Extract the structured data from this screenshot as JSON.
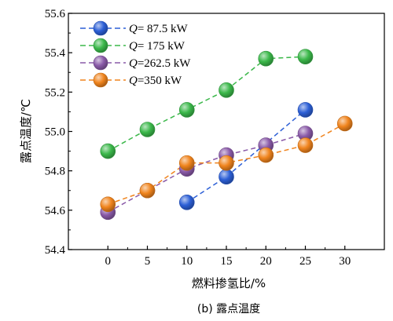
{
  "chart_data": {
    "type": "line",
    "xlabel": "燃料掺氢比/%",
    "ylabel": "露点温度/℃",
    "caption": "(b) 露点温度",
    "x_ticks": [
      "0",
      "5",
      "10",
      "15",
      "20",
      "25",
      "30"
    ],
    "y_ticks": [
      "54.4",
      "54.6",
      "54.8",
      "55.0",
      "55.2",
      "55.4",
      "55.6"
    ],
    "xlim": [
      -5,
      35
    ],
    "ylim": [
      54.4,
      55.6
    ],
    "legend_position": "top-left",
    "series": [
      {
        "name": "Q= 87.5 kW",
        "label_var": "Q",
        "label_rest": "= 87.5 kW",
        "color": "#2c5fd6",
        "x": [
          10,
          15,
          25
        ],
        "y": [
          54.64,
          54.77,
          55.11
        ]
      },
      {
        "name": "Q= 175 kW",
        "label_var": "Q",
        "label_rest": "= 175 kW",
        "color": "#3bb84a",
        "x": [
          0,
          5,
          10,
          15,
          20,
          25
        ],
        "y": [
          54.9,
          55.01,
          55.11,
          55.21,
          55.37,
          55.38
        ]
      },
      {
        "name": "Q=262.5 kW",
        "label_var": "Q",
        "label_rest": "=262.5 kW",
        "color": "#8a5aa8",
        "x": [
          0,
          5,
          10,
          15,
          20,
          25
        ],
        "y": [
          54.59,
          54.7,
          54.81,
          54.88,
          54.93,
          54.99
        ]
      },
      {
        "name": "Q=350 kW",
        "label_var": "Q",
        "label_rest": "=350 kW",
        "color": "#f0841d",
        "x": [
          0,
          5,
          10,
          15,
          20,
          25,
          30
        ],
        "y": [
          54.63,
          54.7,
          54.84,
          54.84,
          54.88,
          54.93,
          55.04
        ]
      }
    ]
  }
}
